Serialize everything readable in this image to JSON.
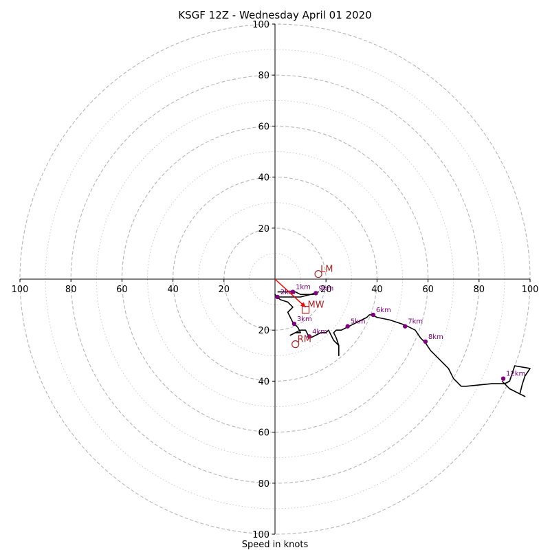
{
  "chart_data": {
    "type": "line",
    "title": "KSGF 12Z - Wednesday April 01 2020",
    "xlabel": "Speed in knots",
    "ylabel": "",
    "xlim": [
      -100,
      100
    ],
    "ylim": [
      -100,
      100
    ],
    "ring_levels_dashed": [
      20,
      40,
      60,
      80,
      100
    ],
    "ring_levels_dotted": [
      10,
      30,
      50,
      70,
      90
    ],
    "tick_values": [
      20,
      40,
      60,
      80,
      100
    ],
    "tick_labels": [
      "20",
      "40",
      "60",
      "80",
      "100"
    ],
    "colors": {
      "trace": "#000000",
      "height_marker": "#800080",
      "storm_motion": "#b22222",
      "arrow": "#ff0000",
      "ring": "#bbbbbb"
    },
    "series": [
      {
        "values": [
          [
            1,
            -5
          ],
          [
            5,
            -5
          ],
          [
            8,
            -5
          ],
          [
            10,
            -6
          ],
          [
            12,
            -6
          ],
          [
            15,
            -6
          ],
          [
            17,
            -5
          ],
          [
            14,
            -6
          ],
          [
            10,
            -7
          ],
          [
            6,
            -7
          ],
          [
            3,
            -7
          ],
          [
            1,
            -7
          ],
          [
            0,
            -6
          ],
          [
            2,
            -8
          ],
          [
            5,
            -9
          ],
          [
            7,
            -11
          ],
          [
            5,
            -13
          ],
          [
            6,
            -15
          ],
          [
            7,
            -17
          ],
          [
            8,
            -18
          ],
          [
            9,
            -19
          ],
          [
            10,
            -21
          ],
          [
            8,
            -21
          ],
          [
            6,
            -22
          ],
          [
            8,
            -21
          ],
          [
            10,
            -20
          ],
          [
            12,
            -20
          ],
          [
            13,
            -22
          ],
          [
            14,
            -23
          ],
          [
            16,
            -22
          ],
          [
            18,
            -21
          ],
          [
            20,
            -21
          ],
          [
            21,
            -20
          ],
          [
            22,
            -22
          ],
          [
            23,
            -24
          ],
          [
            25,
            -26
          ],
          [
            25,
            -30
          ],
          [
            25,
            -26
          ],
          [
            24,
            -23
          ],
          [
            23,
            -21
          ],
          [
            24,
            -20
          ],
          [
            26,
            -20
          ],
          [
            28,
            -19
          ],
          [
            30,
            -18
          ],
          [
            32,
            -17
          ],
          [
            34,
            -16
          ],
          [
            36,
            -15
          ],
          [
            37,
            -14
          ],
          [
            38,
            -14
          ],
          [
            40,
            -15
          ],
          [
            45,
            -16
          ],
          [
            51,
            -18
          ],
          [
            55,
            -20
          ],
          [
            57,
            -23
          ],
          [
            59,
            -25
          ],
          [
            61,
            -28
          ],
          [
            62,
            -29
          ],
          [
            65,
            -32
          ],
          [
            68,
            -35
          ],
          [
            70,
            -39
          ],
          [
            73,
            -42
          ],
          [
            75,
            -42
          ],
          [
            85,
            -41
          ],
          [
            90,
            -41
          ],
          [
            92,
            -40
          ],
          [
            93,
            -37
          ],
          [
            94,
            -34
          ],
          [
            100,
            -35
          ],
          [
            98,
            -38
          ],
          [
            97,
            -41
          ],
          [
            96,
            -45
          ],
          [
            98,
            -46
          ],
          [
            96,
            -45
          ],
          [
            92,
            -43
          ],
          [
            90,
            -41
          ],
          [
            89,
            -40
          ]
        ]
      }
    ],
    "height_markers": [
      {
        "label": "1km",
        "u": 7,
        "v": -5
      },
      {
        "label": "2km",
        "u": 1,
        "v": -7
      },
      {
        "label": "3km",
        "u": 7.5,
        "v": -17.5
      },
      {
        "label": "4km",
        "u": 13.5,
        "v": -22.5
      },
      {
        "label": "5km",
        "u": 28.5,
        "v": -18.5
      },
      {
        "label": "6km",
        "u": 38.5,
        "v": -14
      },
      {
        "label": "7km",
        "u": 51,
        "v": -18.5
      },
      {
        "label": "8km",
        "u": 59,
        "v": -24.5
      },
      {
        "label": "9km",
        "u": 16,
        "v": -5.5
      },
      {
        "label": "12km",
        "u": 89.5,
        "v": -39
      }
    ],
    "storm_motion": [
      {
        "label": "LM",
        "u": 17,
        "v": 2,
        "symbol": "circle"
      },
      {
        "label": "MW",
        "u": 12,
        "v": -12,
        "symbol": "square"
      },
      {
        "label": "RM",
        "u": 8,
        "v": -25.5,
        "symbol": "circle"
      }
    ],
    "motion_arrow": {
      "from": [
        0,
        0
      ],
      "to": [
        12,
        -11
      ]
    }
  }
}
